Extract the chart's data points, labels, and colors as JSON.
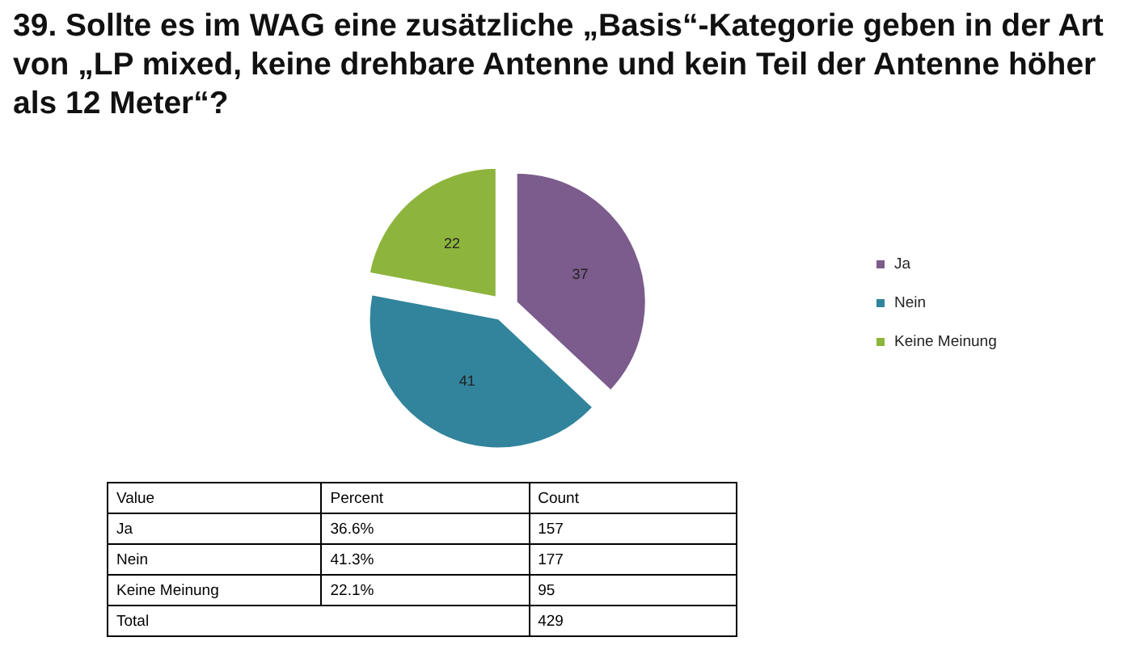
{
  "chart_data": {
    "type": "pie",
    "title": "39. Sollte es im WAG eine zusätzliche „Basis“-Kategorie geben in der Art von „LP mixed, keine drehbare Antenne und kein Teil der Antenne höher als 12 Meter“?",
    "categories": [
      "Ja",
      "Nein",
      "Keine Meinung"
    ],
    "values": [
      37,
      41,
      22
    ],
    "colors": [
      "#7b5c8c",
      "#31849b",
      "#8db43c"
    ],
    "data_labels": true,
    "legend": "right",
    "annotations": [
      "Value",
      "Percent",
      "Count",
      "Ja",
      "36.6%",
      "157",
      "Nein",
      "41.3%",
      "177",
      "Keine Meinung",
      "22.1%",
      "95",
      "Total",
      "429"
    ]
  }
}
